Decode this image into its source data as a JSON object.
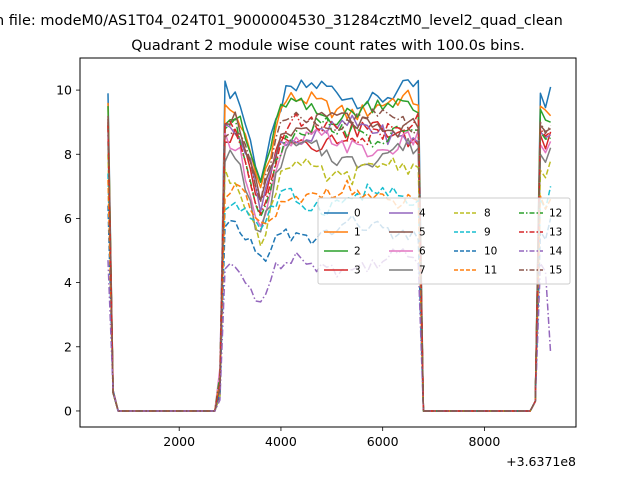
{
  "figure": {
    "suptitle": "n file: modeM0/AS1T04_024T01_9000004530_31284cztM0_level2_quad_clean",
    "offset_label": "+3.6371e8"
  },
  "chart_data": {
    "type": "line",
    "title": "Quadrant 2 module wise count rates with 100.0s bins.",
    "xlabel": "",
    "ylabel": "",
    "xlim": [
      50,
      9800
    ],
    "ylim": [
      -0.5,
      11
    ],
    "x_ticks": [
      2000,
      4000,
      6000,
      8000
    ],
    "x_tick_labels": [
      "2000",
      "4000",
      "6000",
      "8000"
    ],
    "y_ticks": [
      0,
      2,
      4,
      6,
      8,
      10
    ],
    "y_tick_labels": [
      "0",
      "2",
      "4",
      "6",
      "8",
      "10"
    ],
    "grid": false,
    "legend_placement": "center-right",
    "legend_columns": 4,
    "segments": [
      {
        "x": [
          600,
          700,
          800,
          900,
          1000,
          1100,
          1200,
          1300,
          1400,
          1500,
          1600,
          1700,
          1800,
          1900,
          2000,
          2100,
          2200,
          2300,
          2400,
          2500,
          2600,
          2700
        ],
        "zero": true
      },
      {
        "x": [
          2800,
          2900,
          3000,
          3100,
          3200,
          3300,
          3400,
          3500,
          3600,
          3700,
          3800,
          3900,
          4000,
          4100,
          4200,
          4300,
          4400,
          4500,
          4600,
          4700,
          4800,
          4900,
          5000,
          5100,
          5200,
          5300,
          5400,
          5500,
          5600,
          5700,
          5800,
          5900,
          6000,
          6100,
          6200,
          6300,
          6400,
          6500,
          6600,
          6700
        ],
        "zero": false
      },
      {
        "x": [
          6800,
          6900,
          7000,
          7100,
          7200,
          7300,
          7400,
          7500,
          7600,
          7700,
          7800,
          7900,
          8000,
          8100,
          8200,
          8300,
          8400,
          8500,
          8600,
          8700,
          8800,
          8900,
          9000,
          9100,
          9200,
          9300
        ],
        "zero": true
      }
    ],
    "series": [
      {
        "name": "0",
        "color": "#1f77b4",
        "dash": "solid",
        "level": 9.9,
        "start": 9.9,
        "end": 10.1
      },
      {
        "name": "1",
        "color": "#ff7f0e",
        "dash": "solid",
        "level": 9.5,
        "start": 9.6,
        "end": 9.2
      },
      {
        "name": "2",
        "color": "#2ca02c",
        "dash": "solid",
        "level": 9.4,
        "start": 9.5,
        "end": 9.0
      },
      {
        "name": "3",
        "color": "#d62728",
        "dash": "solid",
        "level": 8.6,
        "start": 9.0,
        "end": 8.7
      },
      {
        "name": "4",
        "color": "#9467bd",
        "dash": "solid",
        "level": 8.7,
        "start": 8.8,
        "end": 8.6
      },
      {
        "name": "5",
        "color": "#8c564b",
        "dash": "solid",
        "level": 8.9,
        "start": 9.2,
        "end": 8.8
      },
      {
        "name": "6",
        "color": "#e377c2",
        "dash": "solid",
        "level": 8.3,
        "start": 8.6,
        "end": 8.4
      },
      {
        "name": "7",
        "color": "#7f7f7f",
        "dash": "solid",
        "level": 8.0,
        "start": 8.4,
        "end": 8.2
      },
      {
        "name": "8",
        "color": "#bcbd22",
        "dash": "dashed",
        "level": 7.5,
        "start": 8.0,
        "end": 7.8
      },
      {
        "name": "9",
        "color": "#17becf",
        "dash": "dashed",
        "level": 6.6,
        "start": 7.4,
        "end": 7.0
      },
      {
        "name": "10",
        "color": "#1f77b4",
        "dash": "dashed",
        "level": 5.6,
        "start": 6.4,
        "end": 6.0
      },
      {
        "name": "11",
        "color": "#ff7f0e",
        "dash": "dashed",
        "level": 6.7,
        "start": 7.2,
        "end": 6.6
      },
      {
        "name": "12",
        "color": "#2ca02c",
        "dash": "dashdot",
        "level": 8.7,
        "start": 8.9,
        "end": 8.5
      },
      {
        "name": "13",
        "color": "#d62728",
        "dash": "dashdot",
        "level": 8.8,
        "start": 8.9,
        "end": 8.7
      },
      {
        "name": "14",
        "color": "#9467bd",
        "dash": "dashdot",
        "level": 4.6,
        "start": 4.7,
        "end": 1.8
      },
      {
        "name": "15",
        "color": "#8c564b",
        "dash": "dashdot",
        "level": 9.0,
        "start": 9.1,
        "end": 8.9
      }
    ]
  }
}
